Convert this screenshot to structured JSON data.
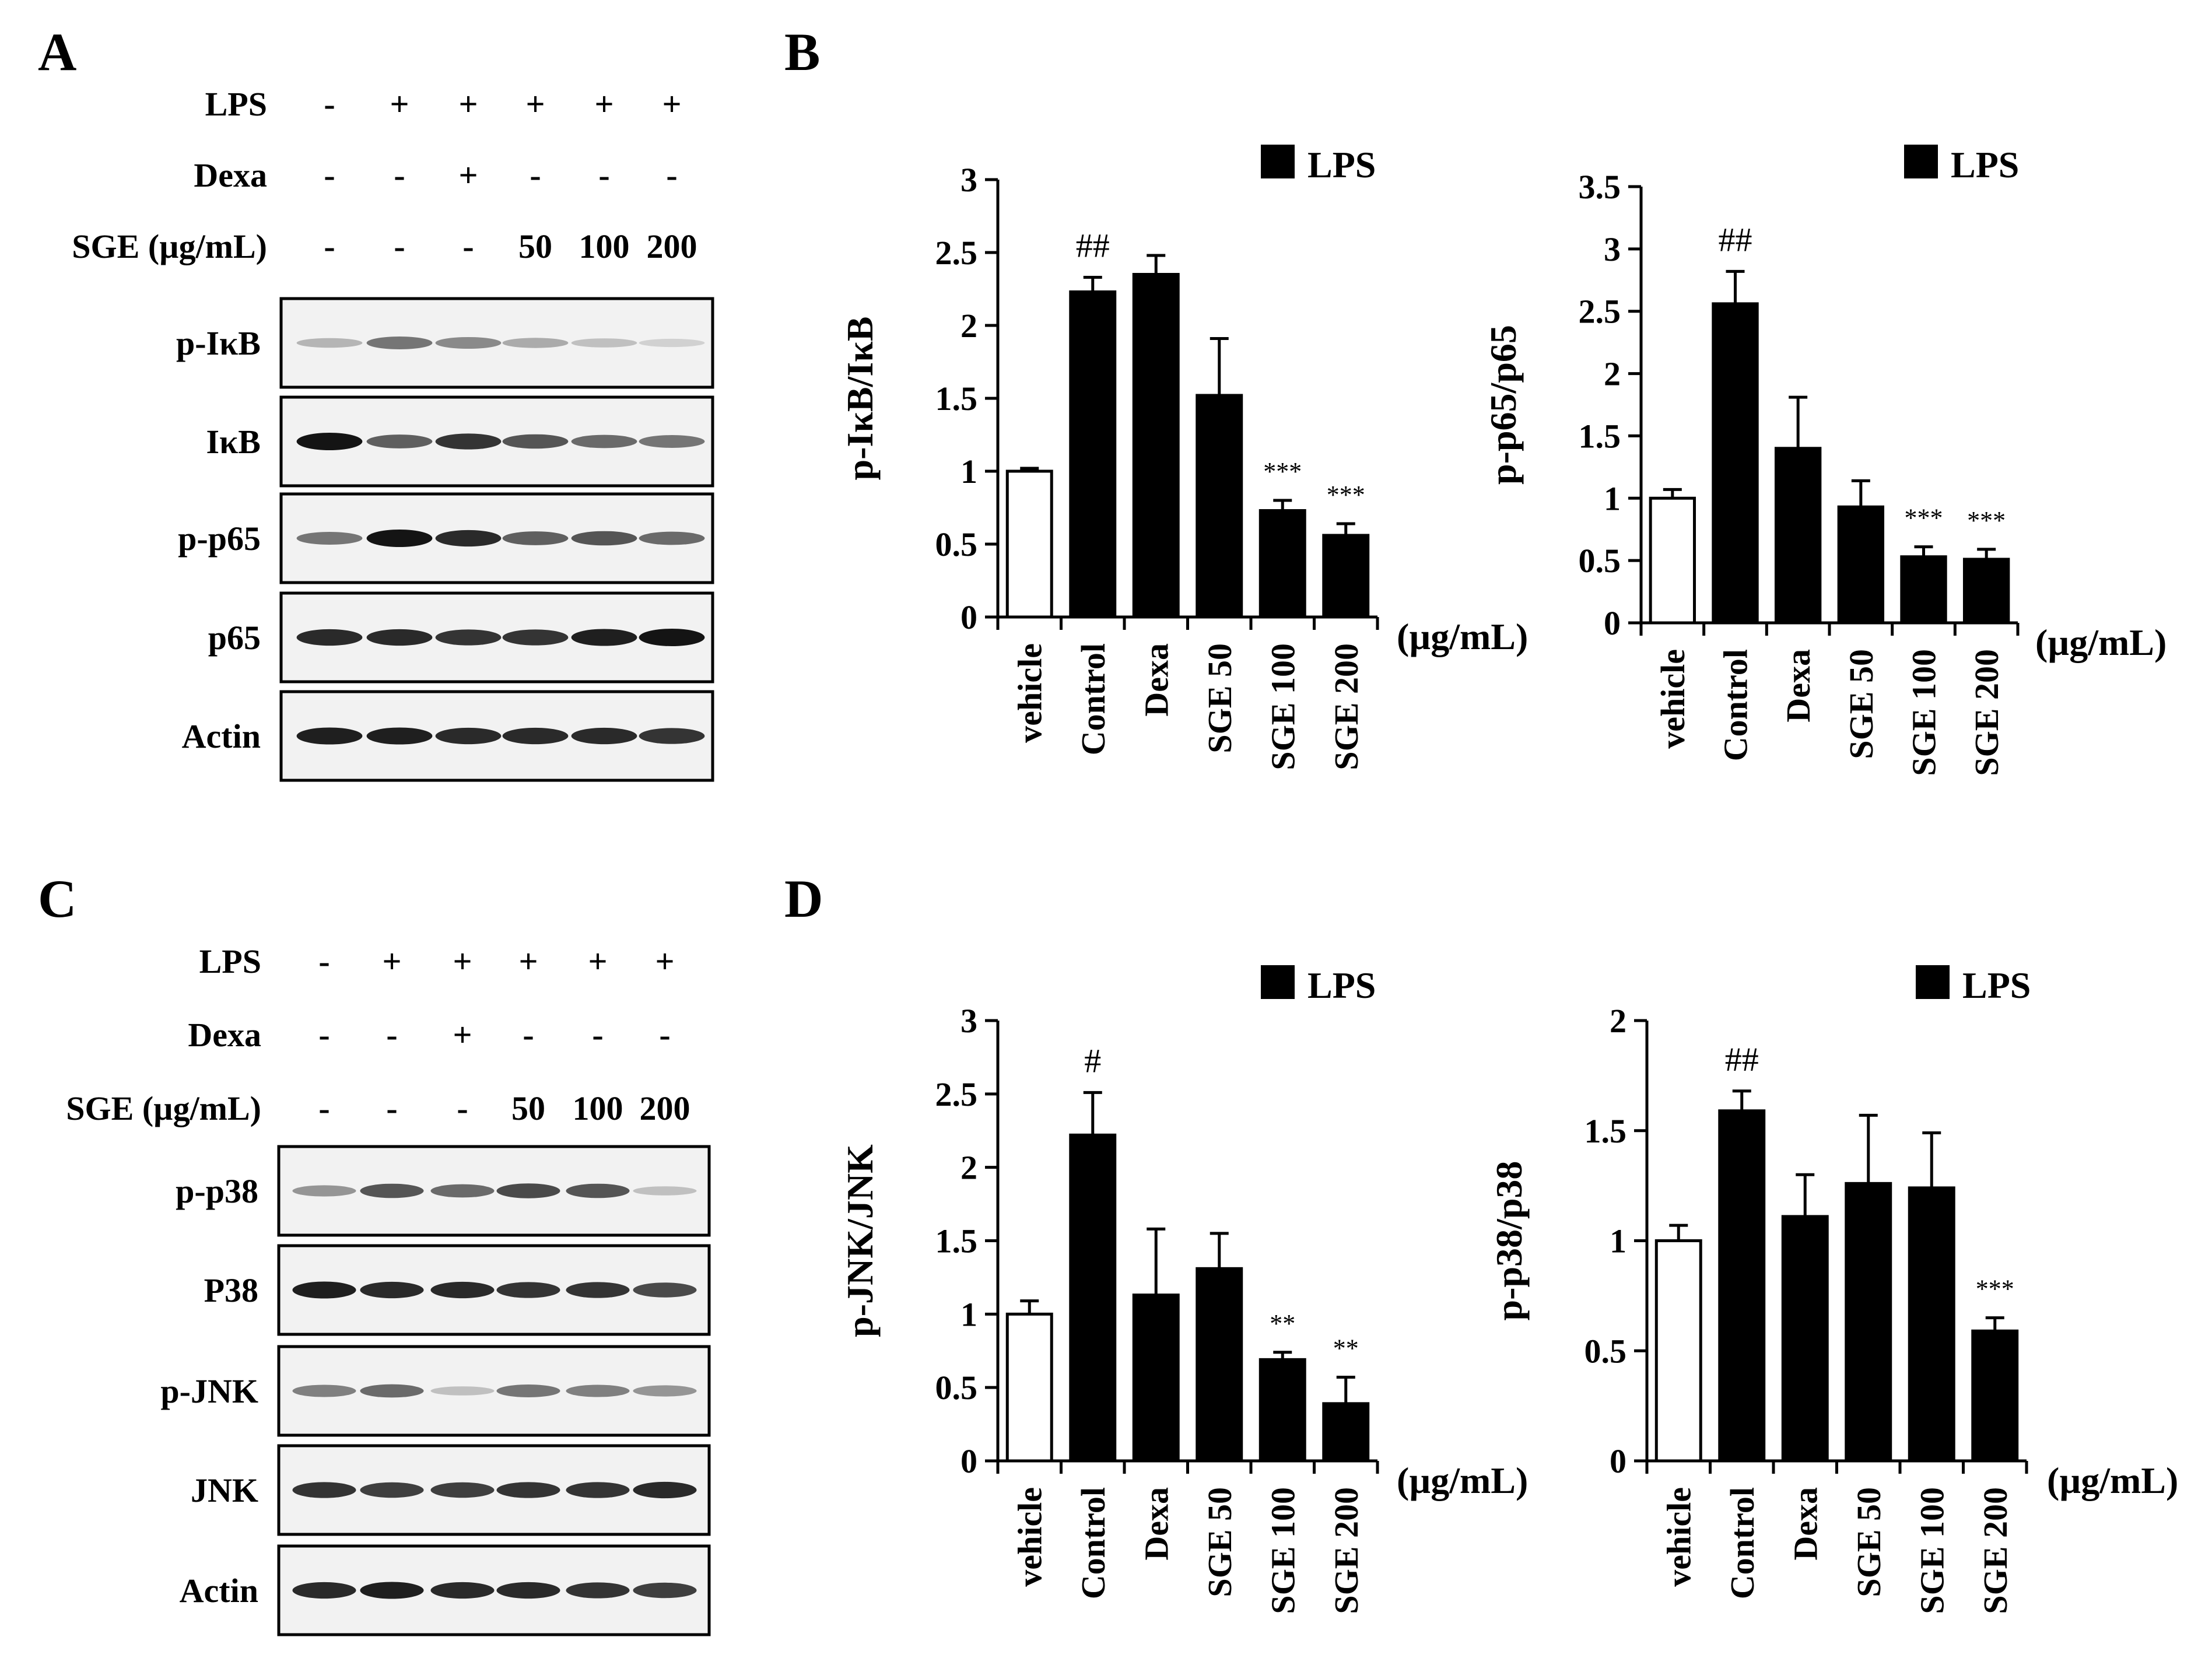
{
  "panels": {
    "A": {
      "label": "A",
      "conditions": [
        {
          "name": "LPS",
          "marks": [
            "-",
            "+",
            "+",
            "+",
            "+",
            "+"
          ]
        },
        {
          "name": "Dexa",
          "marks": [
            "-",
            "-",
            "+",
            "-",
            "-",
            "-"
          ]
        },
        {
          "name": "SGE (µg/mL)",
          "marks": [
            "-",
            "-",
            "-",
            "50",
            "100",
            "200"
          ]
        }
      ],
      "blots": [
        {
          "label": "p-IκB",
          "intensity": [
            0.25,
            0.55,
            0.45,
            0.3,
            0.2,
            0.12
          ]
        },
        {
          "label": "IκB",
          "intensity": [
            1.0,
            0.65,
            0.85,
            0.7,
            0.6,
            0.55
          ]
        },
        {
          "label": "p-p65",
          "intensity": [
            0.55,
            1.0,
            0.9,
            0.65,
            0.7,
            0.6
          ]
        },
        {
          "label": "p65",
          "intensity": [
            0.9,
            0.9,
            0.85,
            0.85,
            0.95,
            1.0
          ]
        },
        {
          "label": "Actin",
          "intensity": [
            0.95,
            0.95,
            0.9,
            0.9,
            0.9,
            0.85
          ]
        }
      ]
    },
    "C": {
      "label": "C",
      "conditions": [
        {
          "name": "LPS",
          "marks": [
            "-",
            "+",
            "+",
            "+",
            "+",
            "+"
          ]
        },
        {
          "name": "Dexa",
          "marks": [
            "-",
            "-",
            "+",
            "-",
            "-",
            "-"
          ]
        },
        {
          "name": "SGE (µg/mL)",
          "marks": [
            "-",
            "-",
            "-",
            "50",
            "100",
            "200"
          ]
        }
      ],
      "blots": [
        {
          "label": "p-p38",
          "intensity": [
            0.4,
            0.7,
            0.6,
            0.75,
            0.7,
            0.2
          ]
        },
        {
          "label": "P38",
          "intensity": [
            0.95,
            0.9,
            0.9,
            0.85,
            0.85,
            0.75
          ]
        },
        {
          "label": "p-JNK",
          "intensity": [
            0.5,
            0.6,
            0.2,
            0.55,
            0.5,
            0.4
          ]
        },
        {
          "label": "JNK",
          "intensity": [
            0.85,
            0.8,
            0.8,
            0.85,
            0.85,
            0.9
          ]
        },
        {
          "label": "Actin",
          "intensity": [
            0.9,
            0.95,
            0.9,
            0.9,
            0.85,
            0.8
          ]
        }
      ]
    },
    "B": {
      "label": "B"
    },
    "D": {
      "label": "D"
    }
  },
  "chart_data": [
    {
      "type": "bar",
      "panel": "B",
      "ylabel": "p-IκB/IκB",
      "xunit": "(µg/mL)",
      "legend": "LPS",
      "categories": [
        "vehicle",
        "Control",
        "Dexa",
        "SGE 50",
        "SGE 100",
        "SGE 200"
      ],
      "values": [
        1.0,
        2.23,
        2.35,
        1.52,
        0.73,
        0.56
      ],
      "errors": [
        0.02,
        0.1,
        0.13,
        0.39,
        0.07,
        0.08
      ],
      "significance": [
        "",
        "##",
        "",
        "",
        "***",
        "***"
      ],
      "ylim": [
        0,
        3
      ],
      "yticks": [
        "0",
        "0.5",
        "1",
        "1.5",
        "2",
        "2.5",
        "3"
      ]
    },
    {
      "type": "bar",
      "panel": "B",
      "ylabel": "p-p65/p65",
      "xunit": "(µg/mL)",
      "legend": "LPS",
      "categories": [
        "vehicle",
        "Control",
        "Dexa",
        "SGE 50",
        "SGE 100",
        "SGE 200"
      ],
      "values": [
        1.0,
        2.56,
        1.4,
        0.93,
        0.53,
        0.51
      ],
      "errors": [
        0.07,
        0.26,
        0.41,
        0.21,
        0.08,
        0.08
      ],
      "significance": [
        "",
        "##",
        "",
        "",
        "***",
        "***"
      ],
      "ylim": [
        0,
        3.5
      ],
      "yticks": [
        "0",
        "0.5",
        "1",
        "1.5",
        "2",
        "2.5",
        "3",
        "3.5"
      ]
    },
    {
      "type": "bar",
      "panel": "D",
      "ylabel": "p-JNK/JNK",
      "xunit": "(µg/mL)",
      "legend": "LPS",
      "categories": [
        "vehicle",
        "Control",
        "Dexa",
        "SGE 50",
        "SGE 100",
        "SGE 200"
      ],
      "values": [
        1.0,
        2.22,
        1.13,
        1.31,
        0.69,
        0.39
      ],
      "errors": [
        0.09,
        0.29,
        0.45,
        0.24,
        0.05,
        0.18
      ],
      "significance": [
        "",
        "#",
        "",
        "",
        "**",
        "**"
      ],
      "ylim": [
        0,
        3
      ],
      "yticks": [
        "0",
        "0.5",
        "1",
        "1.5",
        "2",
        "2.5",
        "3"
      ]
    },
    {
      "type": "bar",
      "panel": "D",
      "ylabel": "p-p38/p38",
      "xunit": "(µg/mL)",
      "legend": "LPS",
      "categories": [
        "vehicle",
        "Control",
        "Dexa",
        "SGE 50",
        "SGE 100",
        "SGE 200"
      ],
      "values": [
        1.0,
        1.59,
        1.11,
        1.26,
        1.24,
        0.59
      ],
      "errors": [
        0.07,
        0.09,
        0.19,
        0.31,
        0.25,
        0.06
      ],
      "significance": [
        "",
        "##",
        "",
        "",
        "",
        "***"
      ],
      "ylim": [
        0,
        2
      ],
      "yticks": [
        "0",
        "0.5",
        "1",
        "1.5",
        "2"
      ]
    }
  ]
}
